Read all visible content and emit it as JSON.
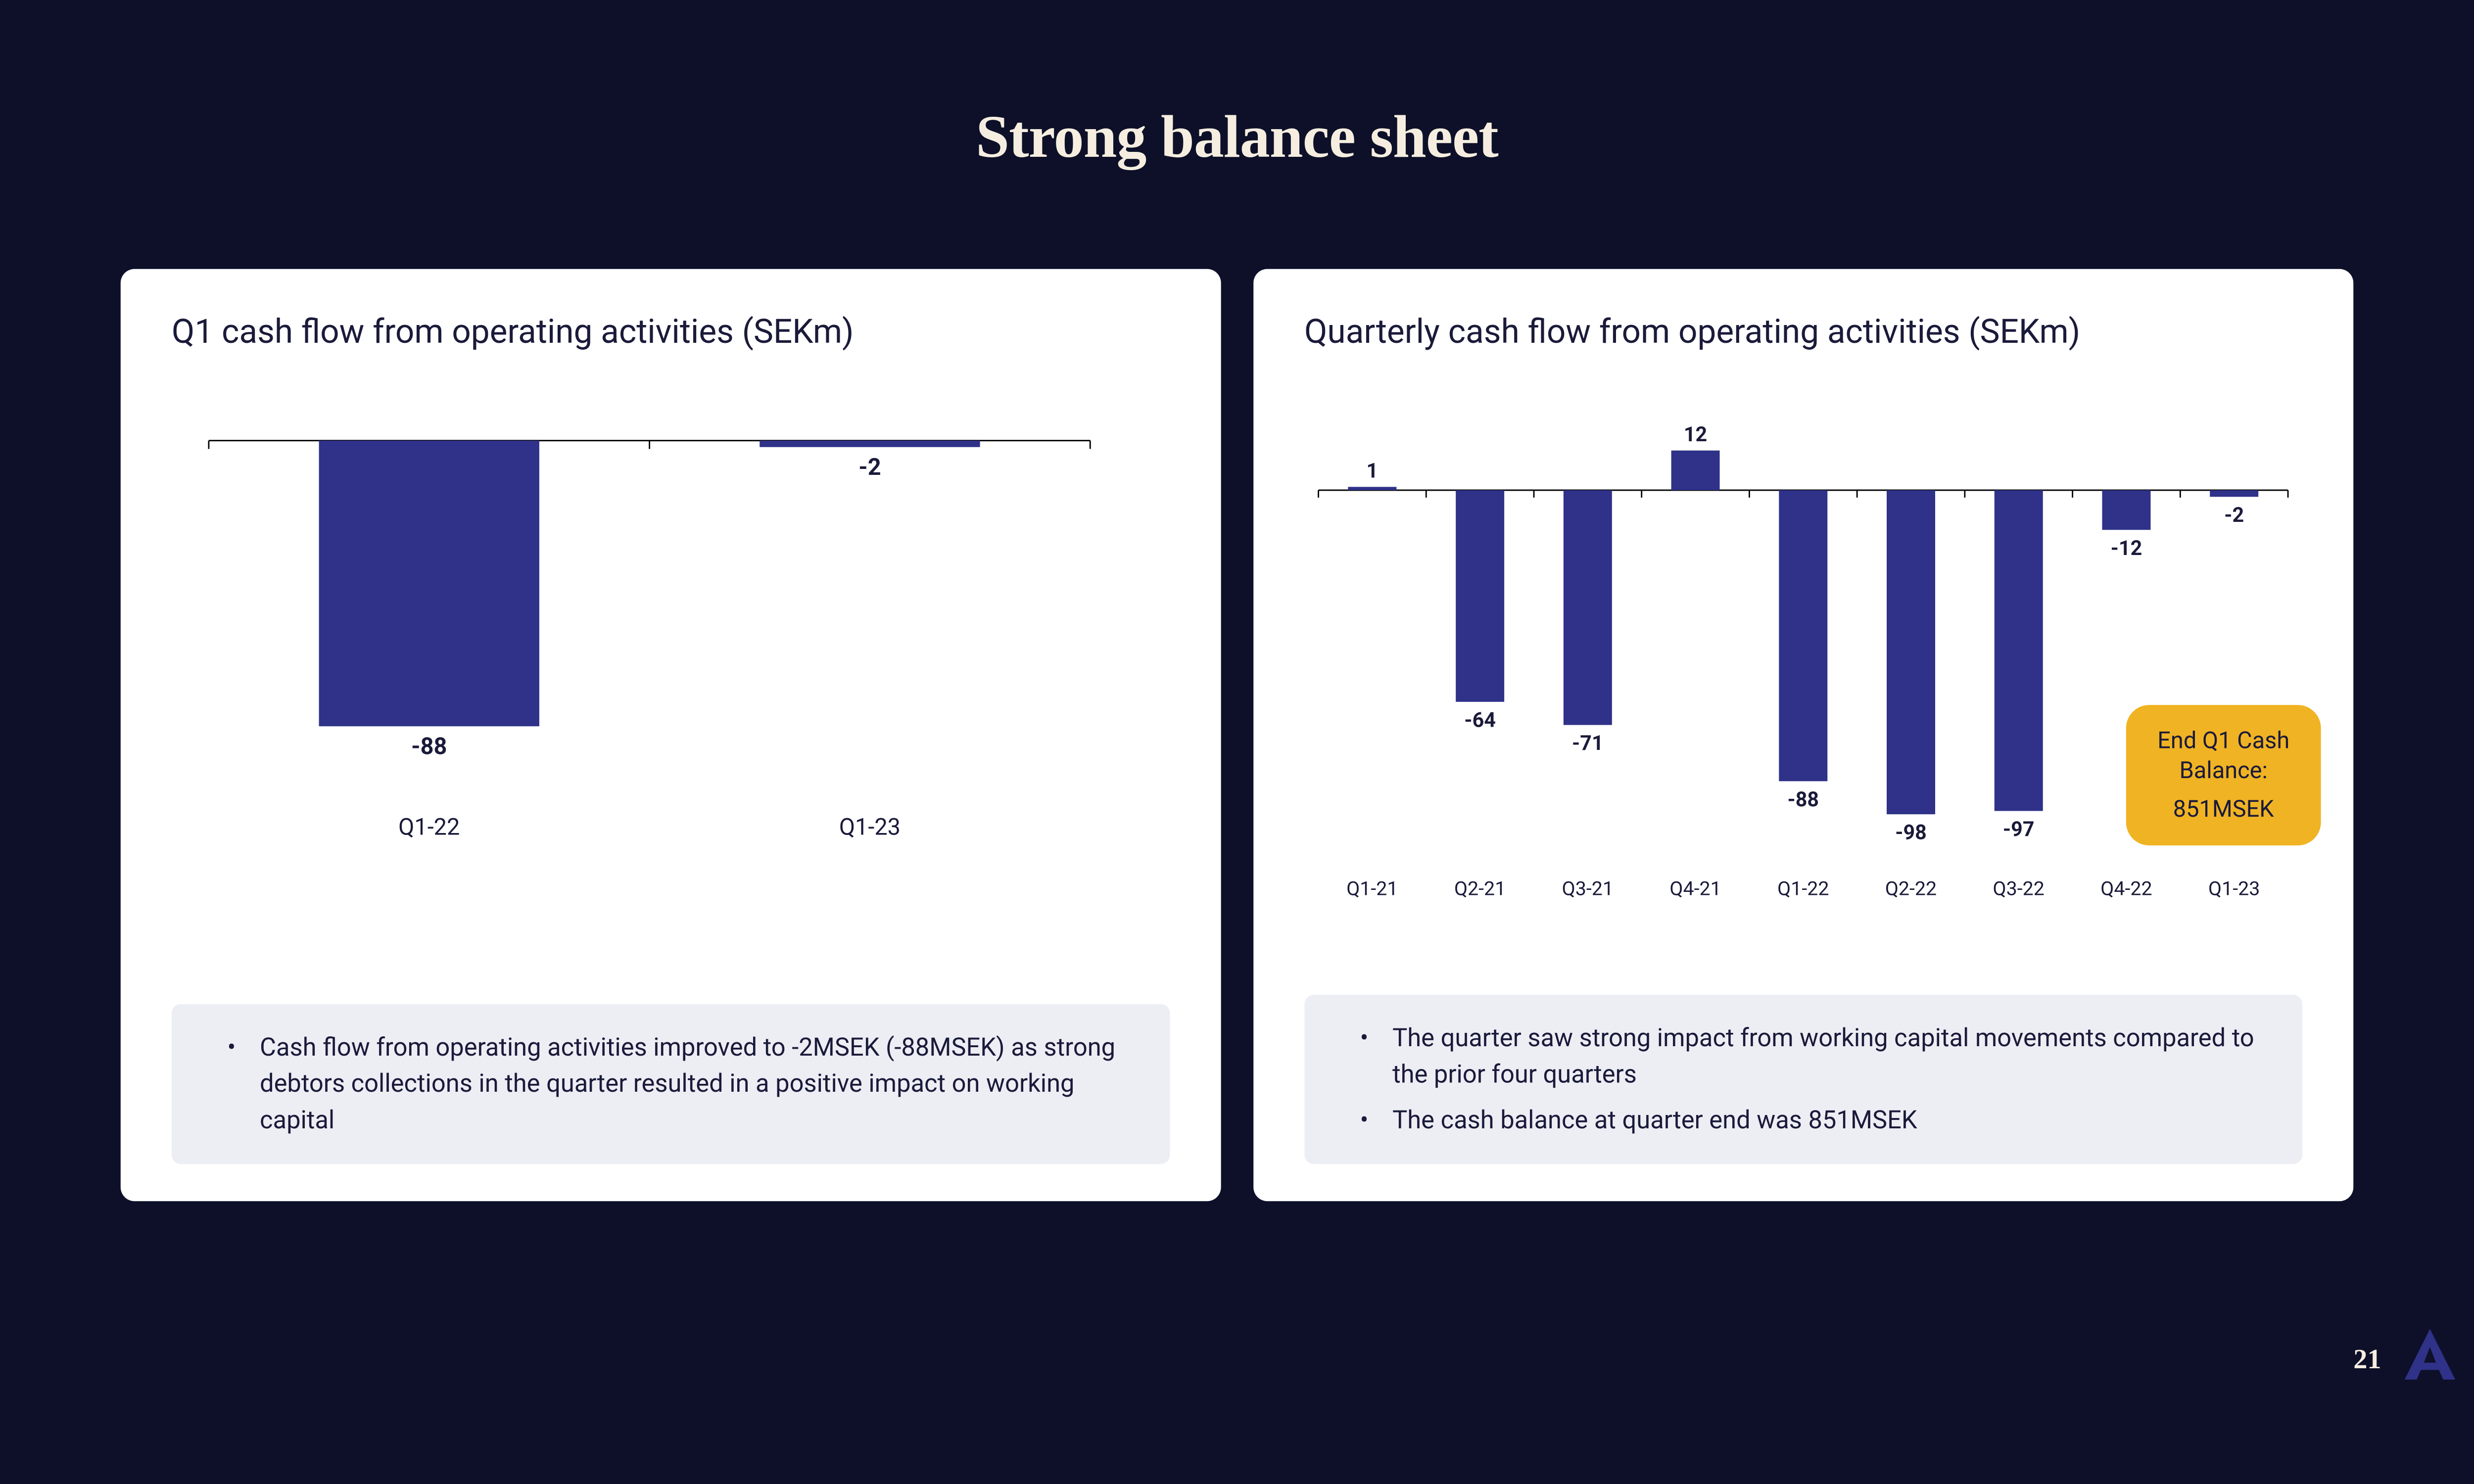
{
  "page": {
    "title": "Strong balance sheet",
    "background_color": "#0d1028",
    "title_color": "#f5eee0",
    "page_number": "21"
  },
  "left_panel": {
    "title": "Q1 cash flow from operating activities (SEKm)",
    "chart": {
      "type": "bar",
      "categories": [
        "Q1-22",
        "Q1-23"
      ],
      "values": [
        -88,
        -2
      ],
      "bar_color": "#2f3288",
      "ymax": 0,
      "ymin": -100,
      "axis_color": "#000000",
      "value_label_fontsize": 50,
      "axis_label_fontsize": 50,
      "value_label_weight": 700,
      "tick_count": 3,
      "background_color": "#ffffff",
      "bar_width_ratio": 0.5
    },
    "notes": [
      "Cash flow from operating activities improved to -2MSEK (-88MSEK) as strong debtors collections in the quarter resulted in a positive impact on working capital"
    ],
    "note_bg": "#eceef4"
  },
  "right_panel": {
    "title": "Quarterly cash flow from operating activities (SEKm)",
    "chart": {
      "type": "bar",
      "categories": [
        "Q1-21",
        "Q2-21",
        "Q3-21",
        "Q4-21",
        "Q1-22",
        "Q2-22",
        "Q3-22",
        "Q4-22",
        "Q1-23"
      ],
      "values": [
        1,
        -64,
        -71,
        12,
        -88,
        -98,
        -97,
        -12,
        -2
      ],
      "bar_color": "#2f3288",
      "ymax": 15,
      "ymin": -100,
      "axis_color": "#000000",
      "value_label_fontsize": 44,
      "axis_label_fontsize": 42,
      "value_label_weight": 700,
      "tick_per_bar": true,
      "background_color": "#ffffff",
      "bar_width_ratio": 0.45
    },
    "callout": {
      "line1": "End Q1 Cash Balance:",
      "line2": "851MSEK",
      "bg_color": "#f0b323",
      "text_color": "#1a1a3a"
    },
    "notes": [
      "The quarter saw strong impact from working capital movements compared to the prior four quarters",
      "The cash balance at quarter end was 851MSEK"
    ],
    "note_bg": "#eceef4"
  },
  "logo": {
    "fill": "#2f3288",
    "letter": "A"
  }
}
